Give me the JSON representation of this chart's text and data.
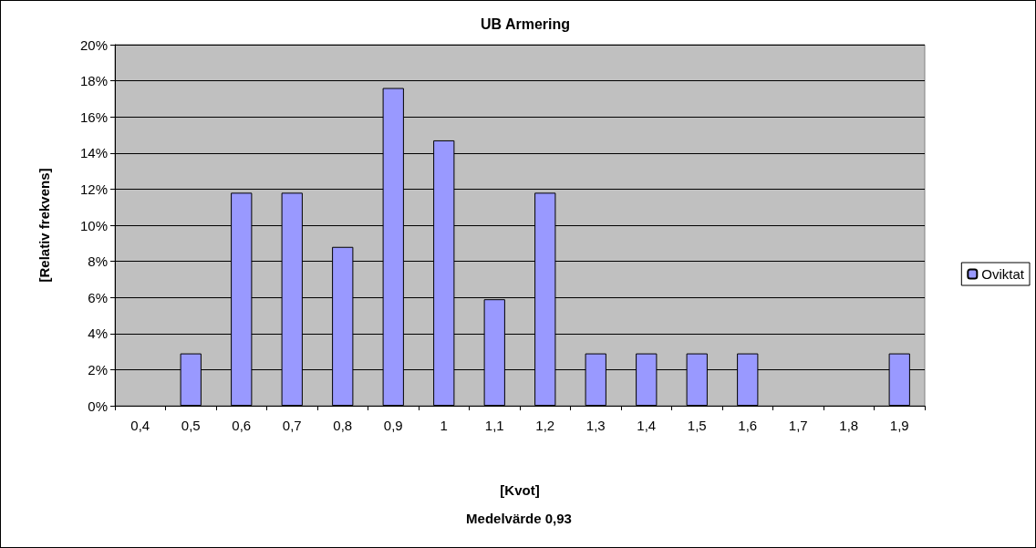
{
  "chart_data": {
    "type": "bar",
    "title": "UB Armering",
    "xlabel": "[Kvot]",
    "ylabel": "[Relativ frekvens]",
    "annotations": [
      "Medelvärde 0,93"
    ],
    "categories": [
      "0,4",
      "0,5",
      "0,6",
      "0,7",
      "0,8",
      "0,9",
      "1",
      "1,1",
      "1,2",
      "1,3",
      "1,4",
      "1,5",
      "1,6",
      "1,7",
      "1,8",
      "1,9"
    ],
    "series": [
      {
        "name": "Oviktat",
        "color": "#9999ff",
        "values": [
          null,
          2.9,
          11.8,
          11.8,
          8.8,
          17.6,
          14.7,
          5.9,
          11.8,
          2.9,
          2.9,
          2.9,
          2.9,
          null,
          null,
          2.9
        ]
      }
    ],
    "ylim": [
      0,
      20
    ],
    "yticks": [
      {
        "value": 0,
        "label": "0%"
      },
      {
        "value": 2,
        "label": "2%"
      },
      {
        "value": 4,
        "label": "4%"
      },
      {
        "value": 6,
        "label": "6%"
      },
      {
        "value": 8,
        "label": "8%"
      },
      {
        "value": 10,
        "label": "10%"
      },
      {
        "value": 12,
        "label": "12%"
      },
      {
        "value": 14,
        "label": "14%"
      },
      {
        "value": 16,
        "label": "16%"
      },
      {
        "value": 18,
        "label": "18%"
      },
      {
        "value": 20,
        "label": "20%"
      }
    ],
    "grid": "y",
    "legend": "right"
  }
}
